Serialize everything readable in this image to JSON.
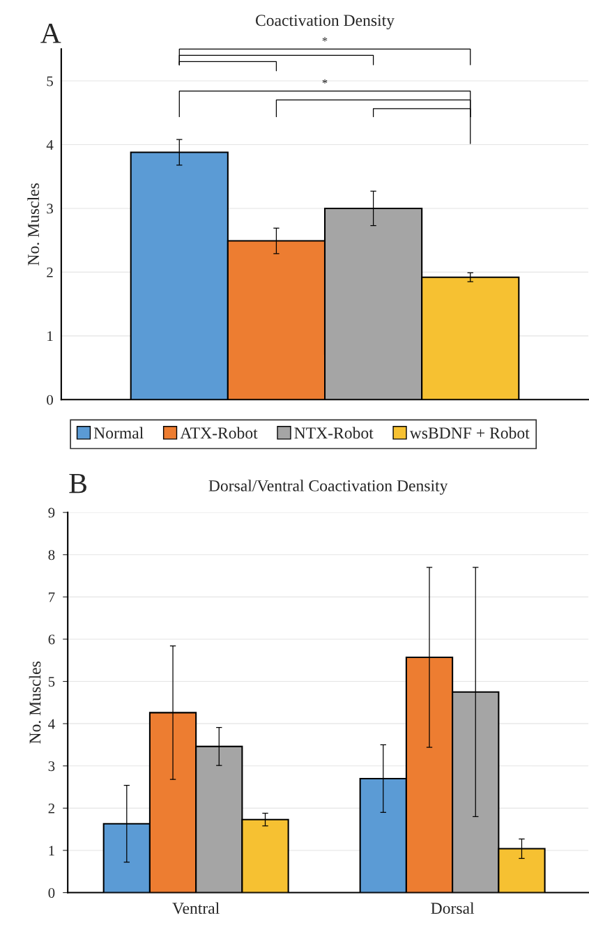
{
  "chart_data": [
    {
      "type": "bar",
      "title": "Coactivation Density",
      "ylabel": "No. Muscles",
      "categories": [
        null
      ],
      "series": [
        {
          "name": "Normal",
          "color": "#5b9bd5",
          "values": [
            3.88
          ],
          "errors": [
            0.2
          ]
        },
        {
          "name": "ATX-Robot",
          "color": "#ed7d31",
          "values": [
            2.49
          ],
          "errors": [
            0.2
          ]
        },
        {
          "name": "NTX-Robot",
          "color": "#a5a5a5",
          "values": [
            3.0
          ],
          "errors": [
            0.27
          ]
        },
        {
          "name": "wsBDNF + Robot",
          "color": "#f6c132",
          "values": [
            1.92
          ],
          "errors": [
            0.07
          ]
        }
      ],
      "ylim": [
        0,
        5.5
      ],
      "yticks": [
        0,
        1,
        2,
        3,
        4,
        5
      ],
      "grid": "y",
      "legend": "bottom",
      "annotations": [
        "A",
        "*",
        "*"
      ]
    },
    {
      "type": "bar",
      "title": "Dorsal/Ventral Coactivation Density",
      "ylabel": "No. Muscles",
      "categories": [
        "Ventral",
        "Dorsal"
      ],
      "series": [
        {
          "color": "#5b9bd5",
          "values": [
            1.63,
            2.7
          ],
          "errors": [
            0.91,
            0.8
          ]
        },
        {
          "color": "#ed7d31",
          "values": [
            4.26,
            5.57
          ],
          "errors": [
            1.58,
            2.13
          ]
        },
        {
          "color": "#a5a5a5",
          "values": [
            3.46,
            4.75
          ],
          "errors": [
            0.45,
            2.95
          ]
        },
        {
          "color": "#f6c132",
          "values": [
            1.73,
            1.04
          ],
          "errors": [
            0.15,
            0.23
          ]
        }
      ],
      "ylim": [
        0,
        9
      ],
      "yticks": [
        0,
        1,
        2,
        3,
        4,
        5,
        6,
        7,
        8,
        9
      ],
      "grid": "y",
      "annotations": [
        "B"
      ]
    }
  ]
}
